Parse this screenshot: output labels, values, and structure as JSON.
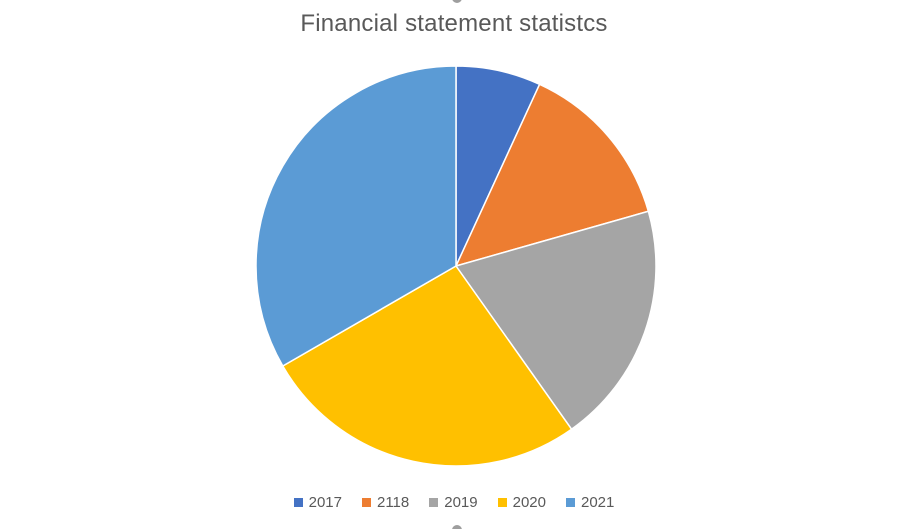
{
  "chart_data": {
    "type": "pie",
    "title": "Financial statement statistcs",
    "categories": [
      "2017",
      "2118",
      "2019",
      "2020",
      "2021"
    ],
    "values": [
      7,
      14,
      20,
      27,
      34
    ],
    "colors": [
      "#4472C4",
      "#ED7D31",
      "#A5A5A5",
      "#FFC000",
      "#5B9BD5"
    ],
    "legend_position": "bottom"
  }
}
